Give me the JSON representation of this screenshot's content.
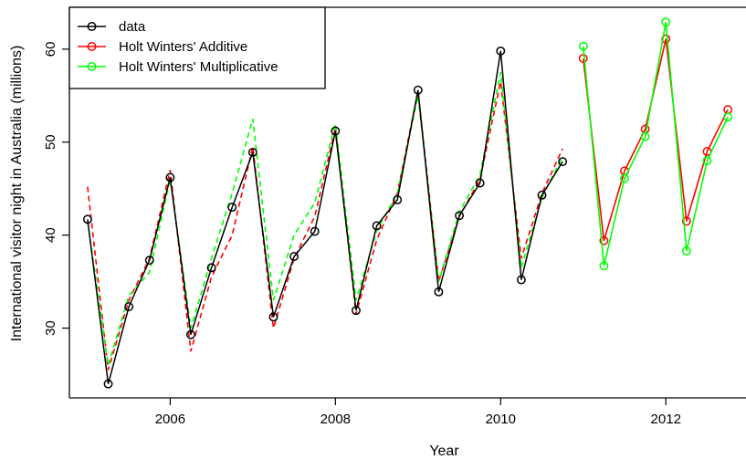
{
  "chart_data": {
    "type": "line",
    "xlabel": "Year",
    "ylabel": "International visitor night in Australia (millions)",
    "xlim": [
      2004.78,
      2012.97
    ],
    "ylim": [
      22.5,
      64.5
    ],
    "xticks": [
      2006,
      2008,
      2010,
      2012
    ],
    "yticks": [
      30,
      40,
      50,
      60
    ],
    "legend_position": "top-left",
    "legend": [
      {
        "label": "data",
        "color": "#000000"
      },
      {
        "label": "Holt Winters' Additive",
        "color": "#ff0000"
      },
      {
        "label": "Holt Winters' Multiplicative",
        "color": "#00ff00"
      }
    ],
    "observed": {
      "name": "data",
      "color": "#000000",
      "x": [
        2005.0,
        2005.25,
        2005.5,
        2005.75,
        2006.0,
        2006.25,
        2006.5,
        2006.75,
        2007.0,
        2007.25,
        2007.5,
        2007.75,
        2008.0,
        2008.25,
        2008.5,
        2008.75,
        2009.0,
        2009.25,
        2009.5,
        2009.75,
        2010.0,
        2010.25,
        2010.5,
        2010.75
      ],
      "values": [
        41.7,
        24.0,
        32.3,
        37.3,
        46.2,
        29.3,
        36.5,
        43.0,
        48.9,
        31.2,
        37.7,
        40.4,
        51.2,
        31.9,
        41.0,
        43.8,
        55.6,
        33.9,
        42.1,
        45.6,
        59.8,
        35.2,
        44.3,
        47.9
      ]
    },
    "fitted": [
      {
        "name": "Holt Winters' Additive",
        "color": "#ff0000",
        "x": [
          2005.0,
          2005.25,
          2005.5,
          2005.75,
          2006.0,
          2006.25,
          2006.5,
          2006.75,
          2007.0,
          2007.25,
          2007.5,
          2007.75,
          2008.0,
          2008.25,
          2008.5,
          2008.75,
          2009.0,
          2009.25,
          2009.5,
          2009.75,
          2010.0,
          2010.25,
          2010.5,
          2010.75
        ],
        "values": [
          45.2,
          25.5,
          33.0,
          37.5,
          47.0,
          27.5,
          35.5,
          40.0,
          49.5,
          30.0,
          37.5,
          42.0,
          51.5,
          31.5,
          39.5,
          44.5,
          55.5,
          35.0,
          42.0,
          46.0,
          56.5,
          37.5,
          44.5,
          49.3
        ]
      },
      {
        "name": "Holt Winters' Multiplicative",
        "color": "#00ff00",
        "x": [
          2005.0,
          2005.25,
          2005.5,
          2005.75,
          2006.0,
          2006.25,
          2006.5,
          2006.75,
          2007.0,
          2007.25,
          2007.5,
          2007.75,
          2008.0,
          2008.25,
          2008.5,
          2008.75,
          2009.0,
          2009.25,
          2009.5,
          2009.75,
          2010.0,
          2010.25,
          2010.5,
          2010.75
        ],
        "values": [
          41.5,
          26.0,
          33.5,
          36.0,
          46.0,
          30.0,
          37.5,
          44.5,
          52.5,
          33.0,
          40.0,
          43.5,
          52.0,
          33.0,
          40.5,
          44.5,
          55.0,
          35.0,
          42.5,
          46.5,
          57.5,
          36.5,
          44.0,
          48.5
        ]
      }
    ],
    "forecast": [
      {
        "name": "Holt Winters' Additive",
        "color": "#ff0000",
        "x": [
          2011.0,
          2011.25,
          2011.5,
          2011.75,
          2012.0,
          2012.25,
          2012.5,
          2012.75
        ],
        "values": [
          59.0,
          39.4,
          46.9,
          51.4,
          61.1,
          41.5,
          49.0,
          53.5
        ]
      },
      {
        "name": "Holt Winters' Multiplicative",
        "color": "#00ff00",
        "x": [
          2011.0,
          2011.25,
          2011.5,
          2011.75,
          2012.0,
          2012.25,
          2012.5,
          2012.75
        ],
        "values": [
          60.3,
          36.7,
          46.1,
          50.6,
          62.9,
          38.3,
          48.0,
          52.7
        ]
      }
    ]
  }
}
